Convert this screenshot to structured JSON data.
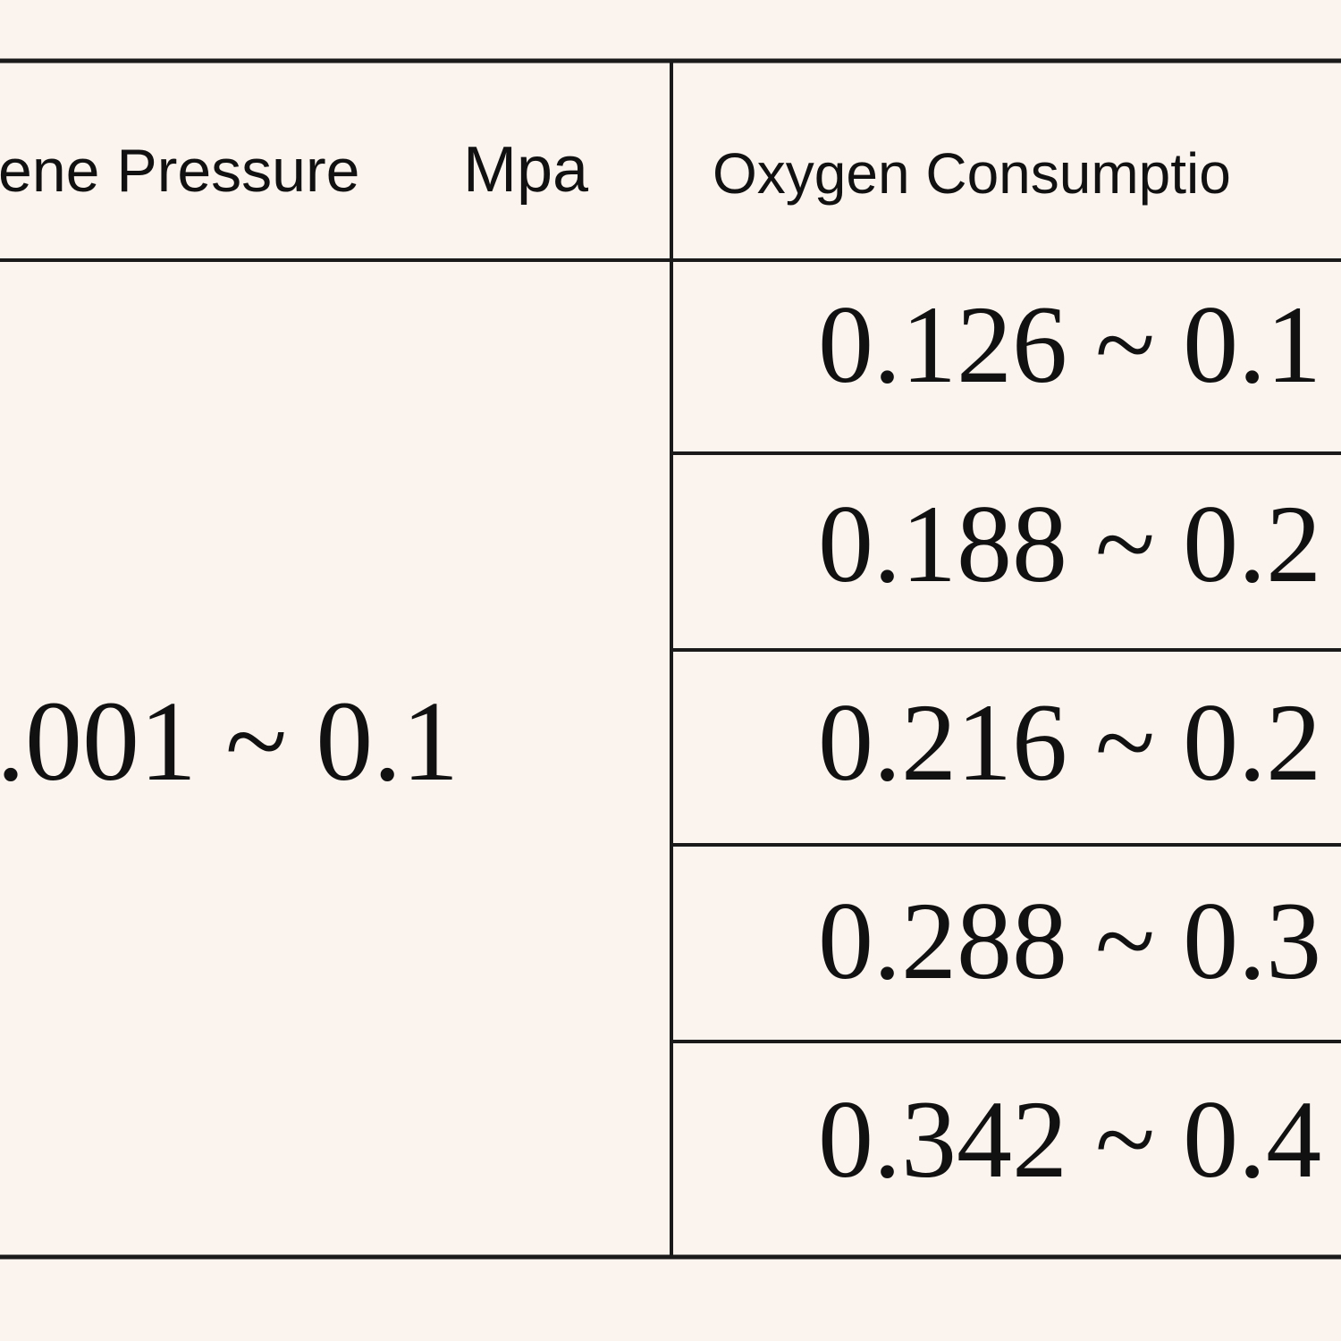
{
  "table": {
    "header": [
      {
        "label": "ene Pressure",
        "unit": "Mpa"
      },
      {
        "label": "Oxygen Consumptio"
      }
    ],
    "pressure": ".001 ~ 0.1",
    "rows": [
      "0.126 ~ 0.1",
      "0.188 ~ 0.2",
      "0.216 ~ 0.2",
      "0.288 ~ 0.3",
      "0.342 ~ 0.4"
    ]
  }
}
